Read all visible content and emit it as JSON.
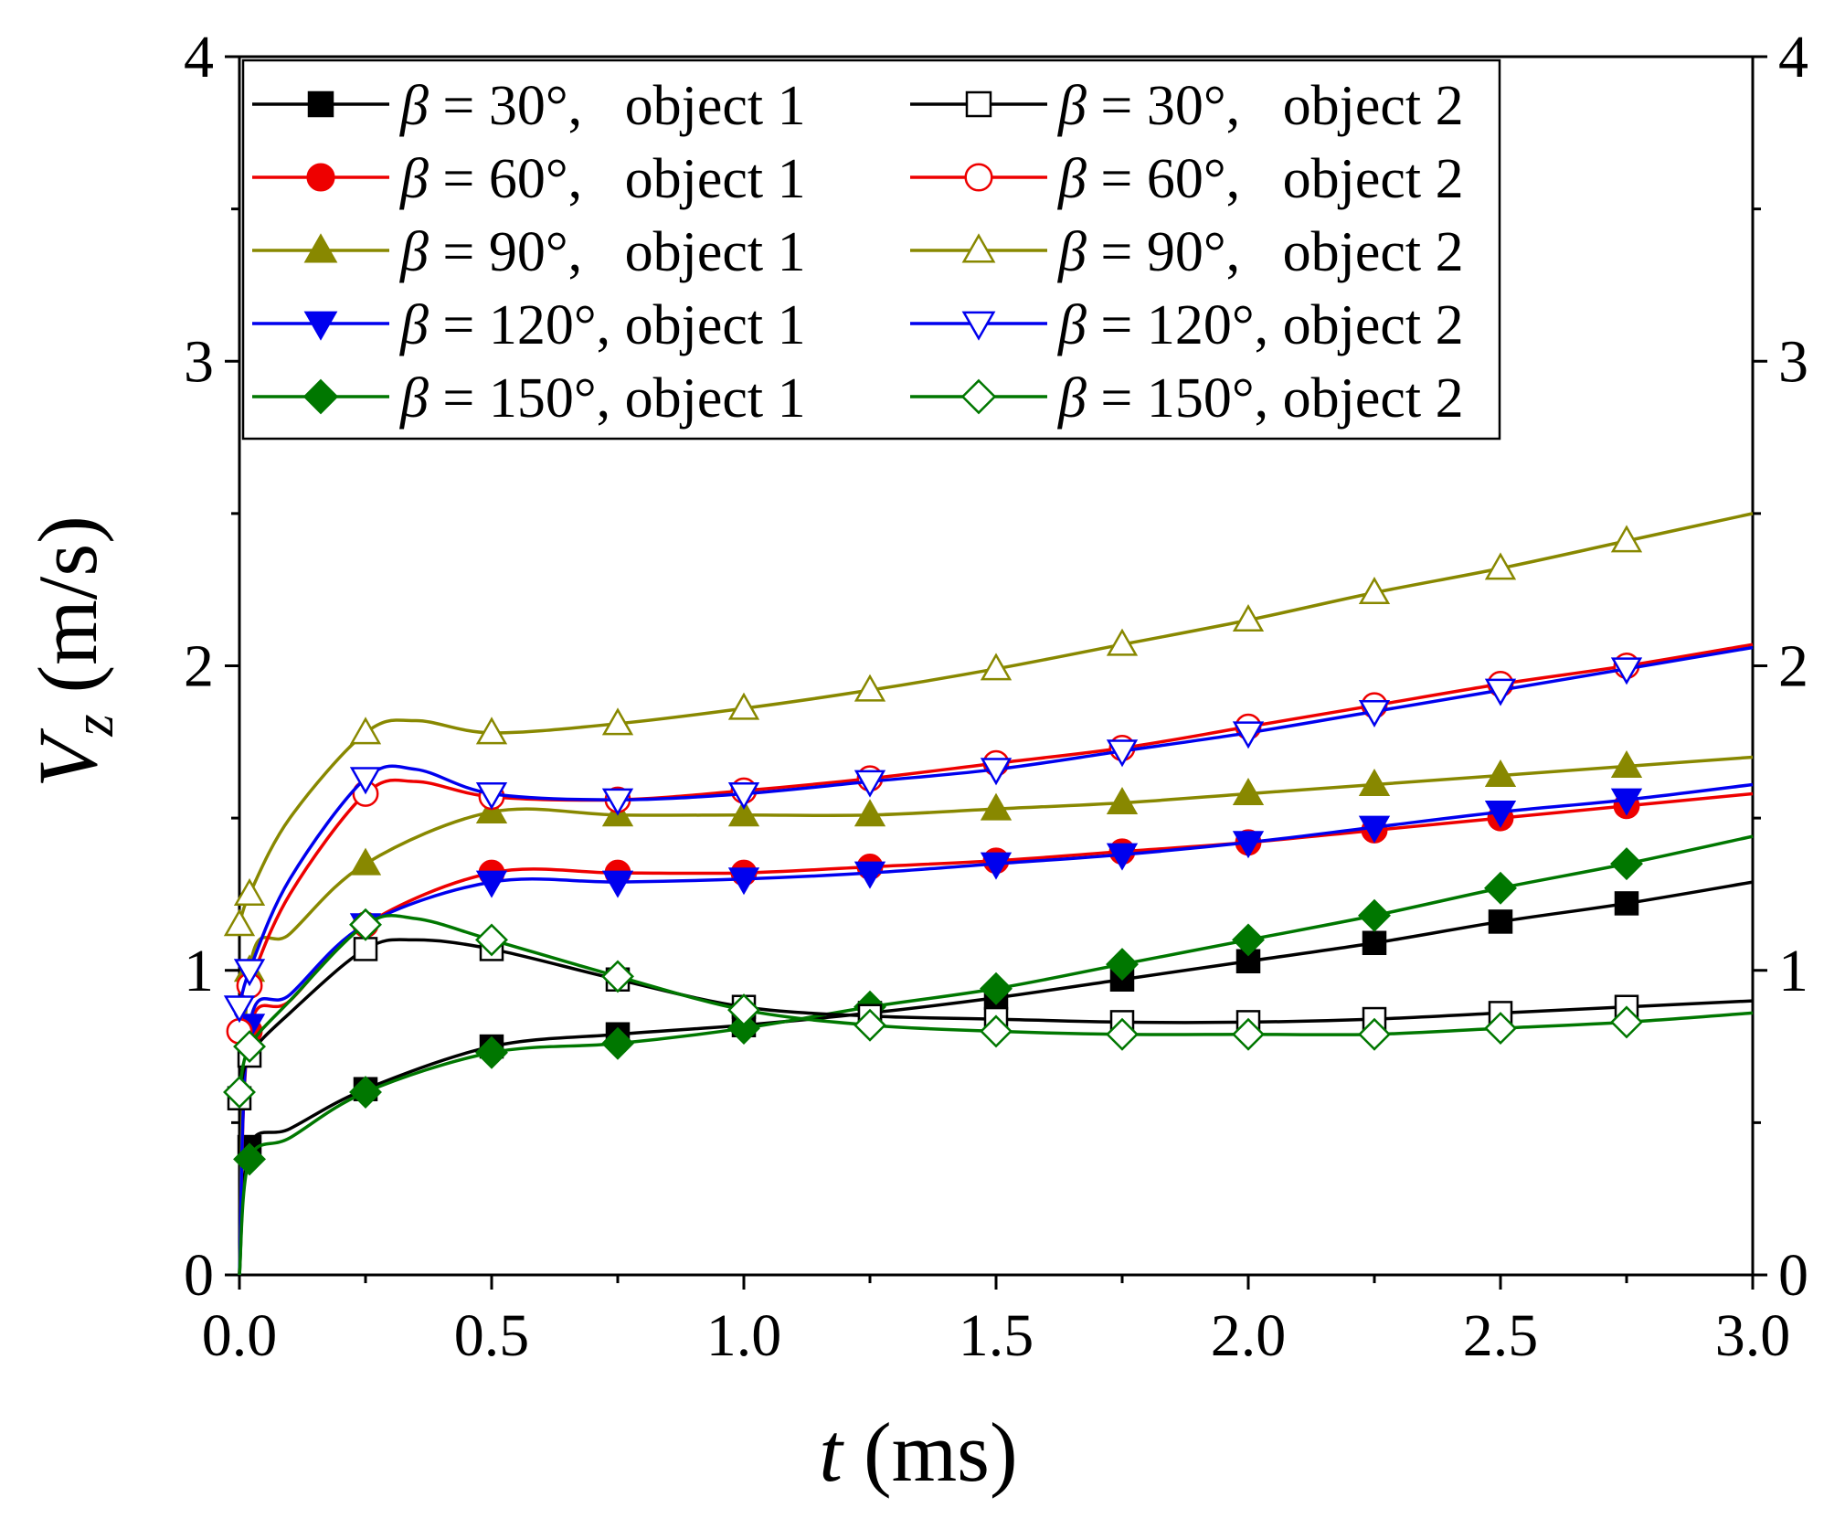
{
  "chart_data": {
    "type": "line",
    "title": "",
    "xlabel": {
      "italic": "t",
      "rest": " (ms)"
    },
    "ylabel": {
      "italic": "V",
      "subscript": "z",
      "rest": " (m/s)"
    },
    "xlim": [
      0,
      3.0
    ],
    "ylim": [
      0,
      4
    ],
    "x_ticks": [
      0.0,
      0.5,
      1.0,
      1.5,
      2.0,
      2.5,
      3.0
    ],
    "x_tick_labels": [
      "0.0",
      "0.5",
      "1.0",
      "1.5",
      "2.0",
      "2.5",
      "3.0"
    ],
    "y_ticks": [
      0,
      1,
      2,
      3,
      4
    ],
    "y_tick_labels": [
      "0",
      "1",
      "2",
      "3",
      "4"
    ],
    "y_minor_ticks": [
      0.5,
      1.5,
      2.5,
      3.5
    ],
    "right_axis_mirror": true,
    "legend_position": "top-left, two columns",
    "series": [
      {
        "name": "β = 30°,   object 1",
        "beta": "β",
        "label": " = 30°,   object 1",
        "color": "#000000",
        "marker": "square",
        "filled": true,
        "x": [
          0,
          0.02,
          0.1,
          0.25,
          0.5,
          0.75,
          1.0,
          1.25,
          1.5,
          1.75,
          2.0,
          2.25,
          2.5,
          2.75,
          3.0
        ],
        "y": [
          0.0,
          0.42,
          0.48,
          0.61,
          0.75,
          0.79,
          0.82,
          0.86,
          0.91,
          0.97,
          1.03,
          1.09,
          1.16,
          1.22,
          1.29
        ]
      },
      {
        "name": "β = 60°,   object 1",
        "beta": "β",
        "label": " = 60°,   object 1",
        "color": "#ee0000",
        "marker": "circle",
        "filled": true,
        "x": [
          0,
          0.02,
          0.1,
          0.25,
          0.5,
          0.75,
          1.0,
          1.25,
          1.5,
          1.75,
          2.0,
          2.25,
          2.5,
          2.75,
          3.0
        ],
        "y": [
          0.0,
          0.8,
          0.9,
          1.15,
          1.32,
          1.32,
          1.32,
          1.34,
          1.36,
          1.39,
          1.42,
          1.46,
          1.5,
          1.54,
          1.58
        ]
      },
      {
        "name": "β = 90°,   object 1",
        "beta": "β",
        "label": " = 90°,   object 1",
        "color": "#888800",
        "marker": "triangle-up",
        "filled": true,
        "x": [
          0,
          0.02,
          0.1,
          0.25,
          0.5,
          0.75,
          1.0,
          1.25,
          1.5,
          1.75,
          2.0,
          2.25,
          2.5,
          2.75,
          3.0
        ],
        "y": [
          0.0,
          1.0,
          1.12,
          1.35,
          1.52,
          1.51,
          1.51,
          1.51,
          1.53,
          1.55,
          1.58,
          1.61,
          1.64,
          1.67,
          1.7
        ]
      },
      {
        "name": "β = 120°, object 1",
        "beta": "β",
        "label": " = 120°, object 1",
        "color": "#0000ee",
        "marker": "triangle-down",
        "filled": true,
        "x": [
          0,
          0.02,
          0.1,
          0.25,
          0.5,
          0.75,
          1.0,
          1.25,
          1.5,
          1.75,
          2.0,
          2.25,
          2.5,
          2.75,
          3.0
        ],
        "y": [
          0.0,
          0.82,
          0.92,
          1.15,
          1.29,
          1.29,
          1.3,
          1.32,
          1.35,
          1.38,
          1.42,
          1.47,
          1.52,
          1.56,
          1.61
        ]
      },
      {
        "name": "β = 150°, object 1",
        "beta": "β",
        "label": " = 150°, object 1",
        "color": "#007700",
        "marker": "diamond",
        "filled": true,
        "x": [
          0,
          0.02,
          0.1,
          0.25,
          0.5,
          0.75,
          1.0,
          1.25,
          1.5,
          1.75,
          2.0,
          2.25,
          2.5,
          2.75,
          3.0
        ],
        "y": [
          0.0,
          0.38,
          0.45,
          0.6,
          0.73,
          0.76,
          0.81,
          0.88,
          0.94,
          1.02,
          1.1,
          1.18,
          1.27,
          1.35,
          1.44
        ]
      },
      {
        "name": "β = 30°,   object 2",
        "beta": "β",
        "label": " = 30°,   object 2",
        "color": "#000000",
        "marker": "square",
        "filled": false,
        "x": [
          0,
          0.02,
          0.1,
          0.25,
          0.35,
          0.5,
          0.75,
          1.0,
          1.25,
          1.5,
          1.75,
          2.0,
          2.25,
          2.5,
          2.75,
          3.0
        ],
        "y": [
          0.58,
          0.72,
          0.86,
          1.07,
          1.1,
          1.07,
          0.97,
          0.88,
          0.85,
          0.84,
          0.83,
          0.83,
          0.84,
          0.86,
          0.88,
          0.9
        ]
      },
      {
        "name": "β = 60°,   object 2",
        "beta": "β",
        "label": " = 60°,   object 2",
        "color": "#ee0000",
        "marker": "circle",
        "filled": false,
        "x": [
          0,
          0.02,
          0.1,
          0.25,
          0.35,
          0.5,
          0.75,
          1.0,
          1.25,
          1.5,
          1.75,
          2.0,
          2.25,
          2.5,
          2.75,
          3.0
        ],
        "y": [
          0.8,
          0.95,
          1.25,
          1.58,
          1.62,
          1.57,
          1.56,
          1.59,
          1.63,
          1.68,
          1.73,
          1.8,
          1.87,
          1.94,
          2.0,
          2.07
        ]
      },
      {
        "name": "β = 90°,   object 2",
        "beta": "β",
        "label": " = 90°,   object 2",
        "color": "#888800",
        "marker": "triangle-up",
        "filled": false,
        "x": [
          0,
          0.02,
          0.1,
          0.25,
          0.35,
          0.5,
          0.75,
          1.0,
          1.25,
          1.5,
          1.75,
          2.0,
          2.25,
          2.5,
          2.75,
          3.0
        ],
        "y": [
          1.15,
          1.25,
          1.5,
          1.78,
          1.82,
          1.78,
          1.81,
          1.86,
          1.92,
          1.99,
          2.07,
          2.15,
          2.24,
          2.32,
          2.41,
          2.5
        ]
      },
      {
        "name": "β = 120°, object 2",
        "beta": "β",
        "label": " = 120°, object 2",
        "color": "#0000ee",
        "marker": "triangle-down",
        "filled": false,
        "x": [
          0,
          0.02,
          0.1,
          0.25,
          0.35,
          0.5,
          0.75,
          1.0,
          1.25,
          1.5,
          1.75,
          2.0,
          2.25,
          2.5,
          2.75,
          3.0
        ],
        "y": [
          0.88,
          1.0,
          1.3,
          1.63,
          1.66,
          1.58,
          1.56,
          1.58,
          1.62,
          1.66,
          1.72,
          1.78,
          1.85,
          1.92,
          1.99,
          2.06
        ]
      },
      {
        "name": "β = 150°, object 2",
        "beta": "β",
        "label": " = 150°, object 2",
        "color": "#007700",
        "marker": "diamond",
        "filled": false,
        "x": [
          0,
          0.02,
          0.1,
          0.25,
          0.35,
          0.5,
          0.75,
          1.0,
          1.25,
          1.5,
          1.75,
          2.0,
          2.25,
          2.5,
          2.75,
          3.0
        ],
        "y": [
          0.6,
          0.75,
          0.9,
          1.15,
          1.17,
          1.1,
          0.98,
          0.87,
          0.82,
          0.8,
          0.79,
          0.79,
          0.79,
          0.81,
          0.83,
          0.86
        ]
      }
    ]
  }
}
